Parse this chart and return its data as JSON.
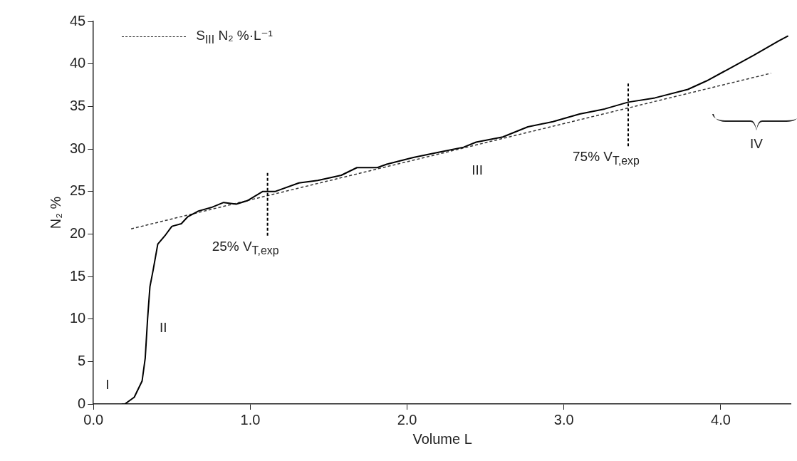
{
  "chart_data": {
    "type": "line",
    "xlabel": "Volume L",
    "ylabel": "N₂ %",
    "xlim": [
      0,
      4.45
    ],
    "xticks": [
      {
        "value": 0,
        "label": "0.0"
      },
      {
        "value": 1,
        "label": "1.0"
      },
      {
        "value": 2,
        "label": "2.0"
      },
      {
        "value": 3,
        "label": "3.0"
      },
      {
        "value": 4,
        "label": "4.0"
      }
    ],
    "ylim": [
      0,
      45
    ],
    "yticks": [
      0,
      5,
      10,
      15,
      20,
      25,
      30,
      35,
      40,
      45
    ],
    "grid": false,
    "legend": "top left",
    "marker": "none",
    "series": [
      {
        "color": "#000000",
        "line_style": "solid",
        "x": [
          0.18,
          0.2,
          0.26,
          0.31,
          0.33,
          0.345,
          0.36,
          0.38,
          0.41,
          0.46,
          0.5,
          0.56,
          0.6,
          0.67,
          0.75,
          0.83,
          0.91,
          0.98,
          1.08,
          1.16,
          1.31,
          1.43,
          1.58,
          1.68,
          1.81,
          1.87,
          2.04,
          2.2,
          2.36,
          2.44,
          2.61,
          2.77,
          2.93,
          3.1,
          3.26,
          3.41,
          3.58,
          3.79,
          3.91,
          4.04,
          4.21,
          4.37,
          4.43
        ],
        "values": [
          0,
          0,
          0.8,
          2.7,
          5.4,
          10,
          13.8,
          15.7,
          18.8,
          19.9,
          20.9,
          21.2,
          22,
          22.7,
          23.1,
          23.7,
          23.5,
          23.9,
          25,
          25,
          26,
          26.3,
          26.9,
          27.8,
          27.8,
          28.2,
          29,
          29.6,
          30.2,
          30.8,
          31.4,
          32.6,
          33.2,
          34.1,
          34.7,
          35.5,
          36,
          37,
          38,
          39.3,
          41,
          42.7,
          43.3
        ]
      },
      {
        "name": "S$_{III}$ N₂ %·L⁻¹",
        "color": "#333333",
        "line_style": "dashed",
        "x": [
          0.24,
          4.32
        ],
        "values": [
          20.6,
          38.9
        ]
      }
    ],
    "ref_lines": [
      {
        "axis": "x",
        "value": 1.11,
        "label": "25% V$_{T,exp}$",
        "color": "#000000",
        "line_style": "dashed"
      },
      {
        "axis": "x",
        "value": 3.41,
        "label": "75% V$_{T,exp}$",
        "color": "#000000",
        "line_style": "dashed"
      }
    ],
    "annotations": [
      "I",
      "II",
      "III",
      "IV"
    ]
  }
}
